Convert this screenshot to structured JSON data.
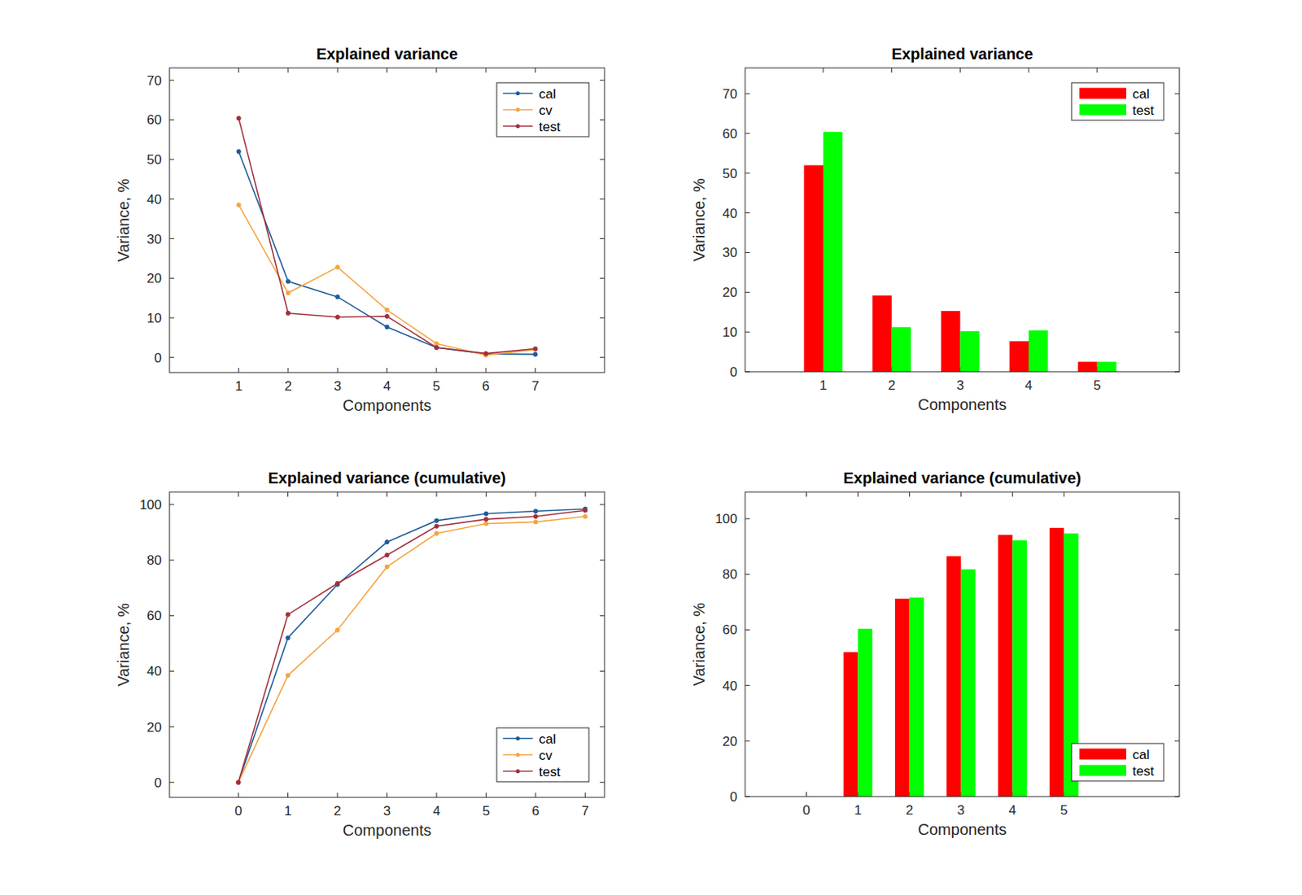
{
  "chart_data": [
    {
      "type": "line",
      "title": "Explained variance",
      "x_label": "Components",
      "y_label": "Variance, %",
      "x": [
        1,
        2,
        3,
        4,
        5,
        6,
        7
      ],
      "series": [
        {
          "name": "cal",
          "color": "#1f5c99",
          "values": [
            52.0,
            19.2,
            15.3,
            7.7,
            2.5,
            0.9,
            0.8
          ]
        },
        {
          "name": "cv",
          "color": "#f5a443",
          "values": [
            38.5,
            16.3,
            22.8,
            12.0,
            3.5,
            0.6,
            2.0
          ]
        },
        {
          "name": "test",
          "color": "#a2303c",
          "values": [
            60.4,
            11.2,
            10.2,
            10.4,
            2.5,
            1.0,
            2.2
          ]
        }
      ],
      "marker": "dot",
      "xlim": [
        -0.4,
        8.4
      ],
      "ylim": [
        -3.8,
        73.1
      ],
      "xticks": [
        1,
        2,
        3,
        4,
        5,
        6,
        7
      ],
      "yticks": [
        0,
        10,
        20,
        30,
        40,
        50,
        60,
        70
      ],
      "legend": "northeast"
    },
    {
      "type": "bar",
      "title": "Explained variance",
      "x_label": "Components",
      "y_label": "Variance, %",
      "x": [
        1,
        2,
        3,
        4,
        5
      ],
      "series": [
        {
          "name": "cal",
          "color": "#ff0000",
          "values": [
            52.0,
            19.2,
            15.3,
            7.7,
            2.5
          ]
        },
        {
          "name": "test",
          "color": "#00ff00",
          "values": [
            60.4,
            11.2,
            10.2,
            10.4,
            2.5
          ]
        }
      ],
      "xlim": [
        -0.14,
        6.2
      ],
      "ylim": [
        0,
        76.5
      ],
      "xticks": [
        1,
        2,
        3,
        4,
        5
      ],
      "yticks": [
        0,
        10,
        20,
        30,
        40,
        50,
        60,
        70
      ],
      "legend": "northeast"
    },
    {
      "type": "line",
      "title": "Explained variance (cumulative)",
      "x_label": "Components",
      "y_label": "Variance, %",
      "x": [
        0,
        1,
        2,
        3,
        4,
        5,
        6,
        7
      ],
      "series": [
        {
          "name": "cal",
          "color": "#1f5c99",
          "values": [
            0,
            52.0,
            71.2,
            86.5,
            94.2,
            96.7,
            97.6,
            98.4
          ]
        },
        {
          "name": "cv",
          "color": "#f5a443",
          "values": [
            0,
            38.5,
            54.8,
            77.6,
            89.6,
            93.1,
            93.7,
            95.7
          ]
        },
        {
          "name": "test",
          "color": "#a2303c",
          "values": [
            0,
            60.4,
            71.6,
            81.8,
            92.2,
            94.7,
            95.7,
            97.9
          ]
        }
      ],
      "marker": "dot",
      "xlim": [
        -1.39,
        7.39
      ],
      "ylim": [
        -5.4,
        104.5
      ],
      "xticks": [
        0,
        1,
        2,
        3,
        4,
        5,
        6,
        7
      ],
      "yticks": [
        0,
        20,
        40,
        60,
        80,
        100
      ],
      "legend": "southeast"
    },
    {
      "type": "bar",
      "title": "Explained variance (cumulative)",
      "x_label": "Components",
      "y_label": "Variance, %",
      "x": [
        1,
        2,
        3,
        4,
        5
      ],
      "series": [
        {
          "name": "cal",
          "color": "#ff0000",
          "values": [
            52.0,
            71.2,
            86.5,
            94.2,
            96.7
          ]
        },
        {
          "name": "test",
          "color": "#00ff00",
          "values": [
            60.4,
            71.6,
            81.8,
            92.2,
            94.7
          ]
        }
      ],
      "xlim": [
        -1.19,
        7.24
      ],
      "ylim": [
        0,
        109.6
      ],
      "xticks": [
        0,
        1,
        2,
        3,
        4,
        5
      ],
      "yticks": [
        0,
        20,
        40,
        60,
        80,
        100
      ],
      "legend": "southeast"
    }
  ]
}
